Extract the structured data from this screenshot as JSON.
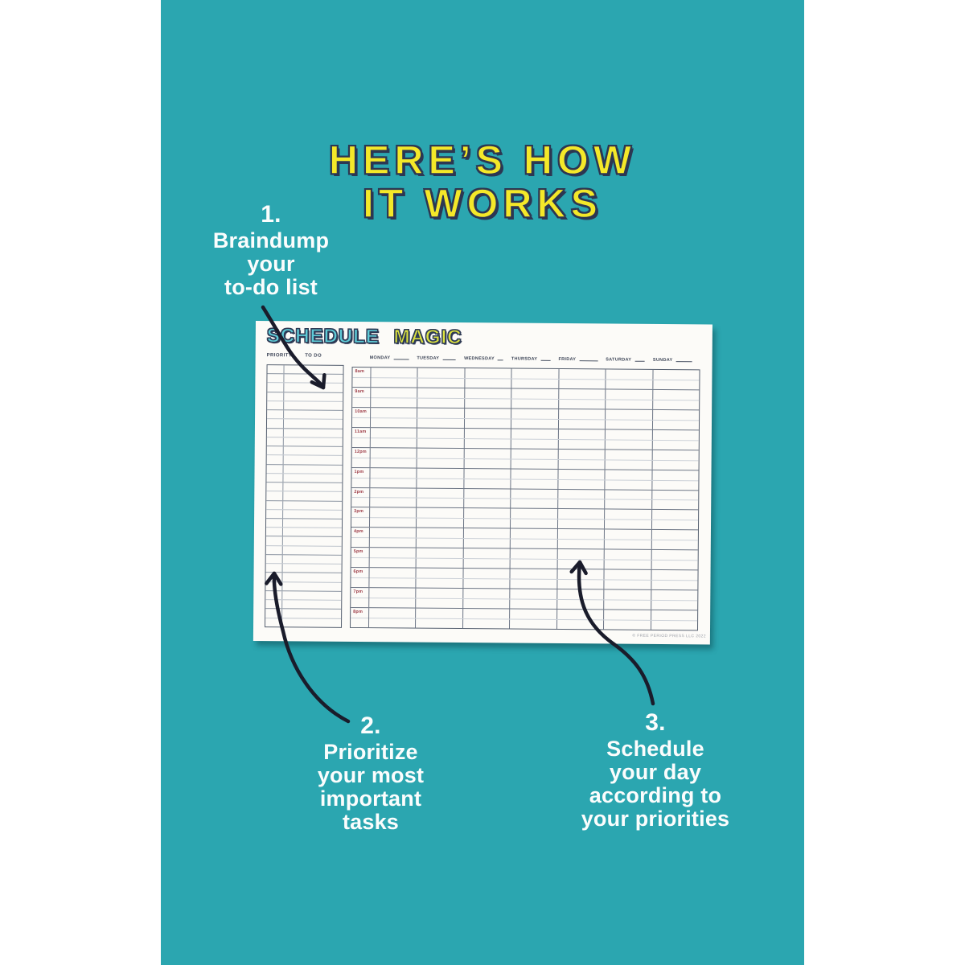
{
  "page": {
    "background": "#ffffff",
    "photo_background": "#2ba6b0"
  },
  "headline": {
    "line1": "HERE’S HOW",
    "line2": "IT WORKS",
    "color": "#f4e829",
    "outline_color": "#2c3752"
  },
  "steps": [
    {
      "number": "1.",
      "lines": [
        "Braindump",
        "your",
        "to-do list"
      ]
    },
    {
      "number": "2.",
      "lines": [
        "Prioritize",
        "your most",
        "important",
        "tasks"
      ]
    },
    {
      "number": "3.",
      "lines": [
        "Schedule",
        "your day",
        "according to",
        "your priorities"
      ]
    }
  ],
  "pad": {
    "title_word1": "SCHEDULE",
    "title_word2": "MAGIC",
    "title_word1_color": "#5ecbd7",
    "title_word2_color": "#dde33f",
    "left_table": {
      "header_priority": "PRIORITY",
      "header_todo": "TO DO",
      "row_count": 29
    },
    "days": [
      "MONDAY",
      "TUESDAY",
      "WEDNESDAY",
      "THURSDAY",
      "FRIDAY",
      "SATURDAY",
      "SUNDAY"
    ],
    "times": [
      "8am",
      "9am",
      "10am",
      "11am",
      "12pm",
      "1pm",
      "2pm",
      "3pm",
      "4pm",
      "5pm",
      "6pm",
      "7pm",
      "8pm"
    ],
    "time_color": "#9d3a45",
    "copyright": "© FREE PERIOD PRESS LLC 2022"
  },
  "icons": {
    "arrow1": "curved-arrow-down-icon",
    "arrow2": "curved-arrow-up-icon",
    "arrow3": "curved-arrow-up-icon"
  }
}
